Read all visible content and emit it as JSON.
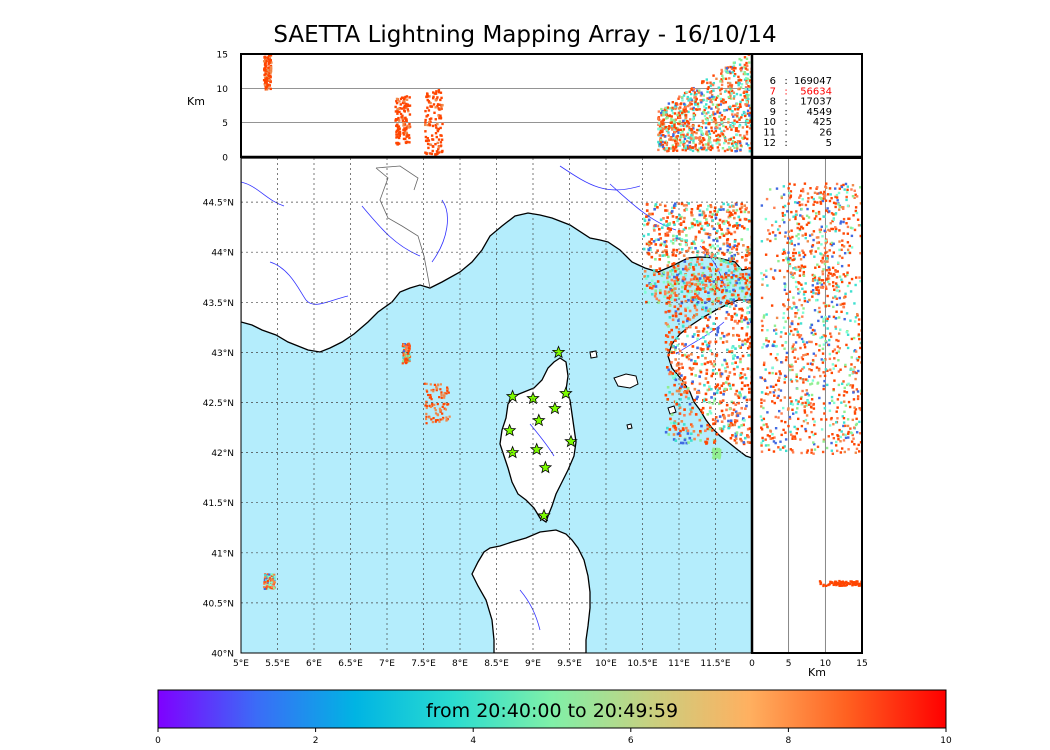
{
  "title": "SAETTA Lightning Mapping Array - 16/10/14",
  "colors": {
    "sea": "#b4edfc",
    "coast": "#000000",
    "rivers": "#3333ff",
    "borders": "#666666",
    "station_fill": "#7cfc00",
    "highlight": "#ff0000"
  },
  "chart_data": [
    {
      "type": "scatter",
      "panel": "top-altitude-longitude",
      "xlim": [
        5,
        12
      ],
      "ylim": [
        0,
        15
      ],
      "ylabel": "Km",
      "yticks": [
        "0",
        "5",
        "10",
        "15"
      ],
      "grid": true,
      "clusters": [
        {
          "x": [
            5.3,
            5.4
          ],
          "alt": [
            10,
            15
          ]
        },
        {
          "x": [
            7.1,
            7.3
          ],
          "alt": [
            2,
            9
          ]
        },
        {
          "x": [
            7.5,
            7.75
          ],
          "alt": [
            0.5,
            10
          ]
        },
        {
          "x": [
            10.7,
            12.0
          ],
          "alt": [
            0.5,
            15
          ]
        }
      ]
    },
    {
      "type": "scatter",
      "panel": "main-map",
      "xlim": [
        5,
        12
      ],
      "ylim": [
        40,
        45
      ],
      "xticks": [
        "5°E",
        "5.5°E",
        "6°E",
        "6.5°E",
        "7°E",
        "7.5°E",
        "8°E",
        "8.5°E",
        "9°E",
        "9.5°E",
        "10°E",
        "10.5°E",
        "11°E",
        "11.5°E"
      ],
      "yticks": [
        "40°N",
        "40.5°N",
        "41°N",
        "41.5°N",
        "42°N",
        "42.5°N",
        "43°N",
        "43.5°N",
        "44°N",
        "44.5°N"
      ],
      "grid": true,
      "stations": [
        {
          "lon": 9.35,
          "lat": 43.0
        },
        {
          "lon": 8.72,
          "lat": 42.56
        },
        {
          "lon": 9.0,
          "lat": 42.54
        },
        {
          "lon": 9.45,
          "lat": 42.59
        },
        {
          "lon": 9.3,
          "lat": 42.44
        },
        {
          "lon": 9.08,
          "lat": 42.32
        },
        {
          "lon": 8.68,
          "lat": 42.22
        },
        {
          "lon": 9.52,
          "lat": 42.11
        },
        {
          "lon": 8.72,
          "lat": 42.0
        },
        {
          "lon": 9.05,
          "lat": 42.03
        },
        {
          "lon": 9.17,
          "lat": 41.85
        },
        {
          "lon": 9.15,
          "lat": 41.37
        }
      ],
      "clusters": [
        {
          "lon": [
            7.2,
            7.3
          ],
          "lat": [
            42.9,
            43.1
          ]
        },
        {
          "lon": [
            7.5,
            7.85
          ],
          "lat": [
            42.3,
            42.7
          ]
        },
        {
          "lon": [
            5.3,
            5.45
          ],
          "lat": [
            40.65,
            40.8
          ]
        },
        {
          "lon": [
            11.45,
            11.55
          ],
          "lat": [
            41.95,
            42.05
          ]
        },
        {
          "lon": [
            10.8,
            12.0
          ],
          "lat": [
            42.1,
            43.8
          ]
        },
        {
          "lon": [
            10.5,
            12.0
          ],
          "lat": [
            43.5,
            44.5
          ]
        }
      ]
    },
    {
      "type": "scatter",
      "panel": "right-altitude-latitude",
      "xlim": [
        0,
        15
      ],
      "ylim": [
        40,
        45
      ],
      "xlabel": "Km",
      "xticks": [
        "0",
        "5",
        "10",
        "15"
      ],
      "grid": true,
      "clusters": [
        {
          "alt": [
            1,
            15
          ],
          "lat": [
            42.0,
            44.7
          ]
        },
        {
          "alt": [
            9,
            15
          ],
          "lat": [
            40.68,
            40.73
          ]
        }
      ]
    }
  ],
  "station_counts": [
    {
      "stations": "6",
      "sep": ":",
      "points": "169047",
      "highlight": false
    },
    {
      "stations": "7",
      "sep": ":",
      "points": "56634",
      "highlight": true
    },
    {
      "stations": "8",
      "sep": ":",
      "points": "17037",
      "highlight": false
    },
    {
      "stations": "9",
      "sep": ":",
      "points": "4549",
      "highlight": false
    },
    {
      "stations": "10",
      "sep": ":",
      "points": "425",
      "highlight": false
    },
    {
      "stations": "11",
      "sep": ":",
      "points": "26",
      "highlight": false
    },
    {
      "stations": "12",
      "sep": ":",
      "points": "5",
      "highlight": false
    }
  ],
  "colorbar": {
    "caption": "from 20:40:00 to 20:49:59",
    "ticks": [
      "0",
      "2",
      "4",
      "6",
      "8",
      "10"
    ],
    "range": [
      0,
      10
    ],
    "stops": [
      "#7f00ff",
      "#3b6cf7",
      "#00b4e3",
      "#2adcd0",
      "#80f0a8",
      "#c8d080",
      "#ffb060",
      "#ff6020",
      "#ff0000"
    ]
  }
}
